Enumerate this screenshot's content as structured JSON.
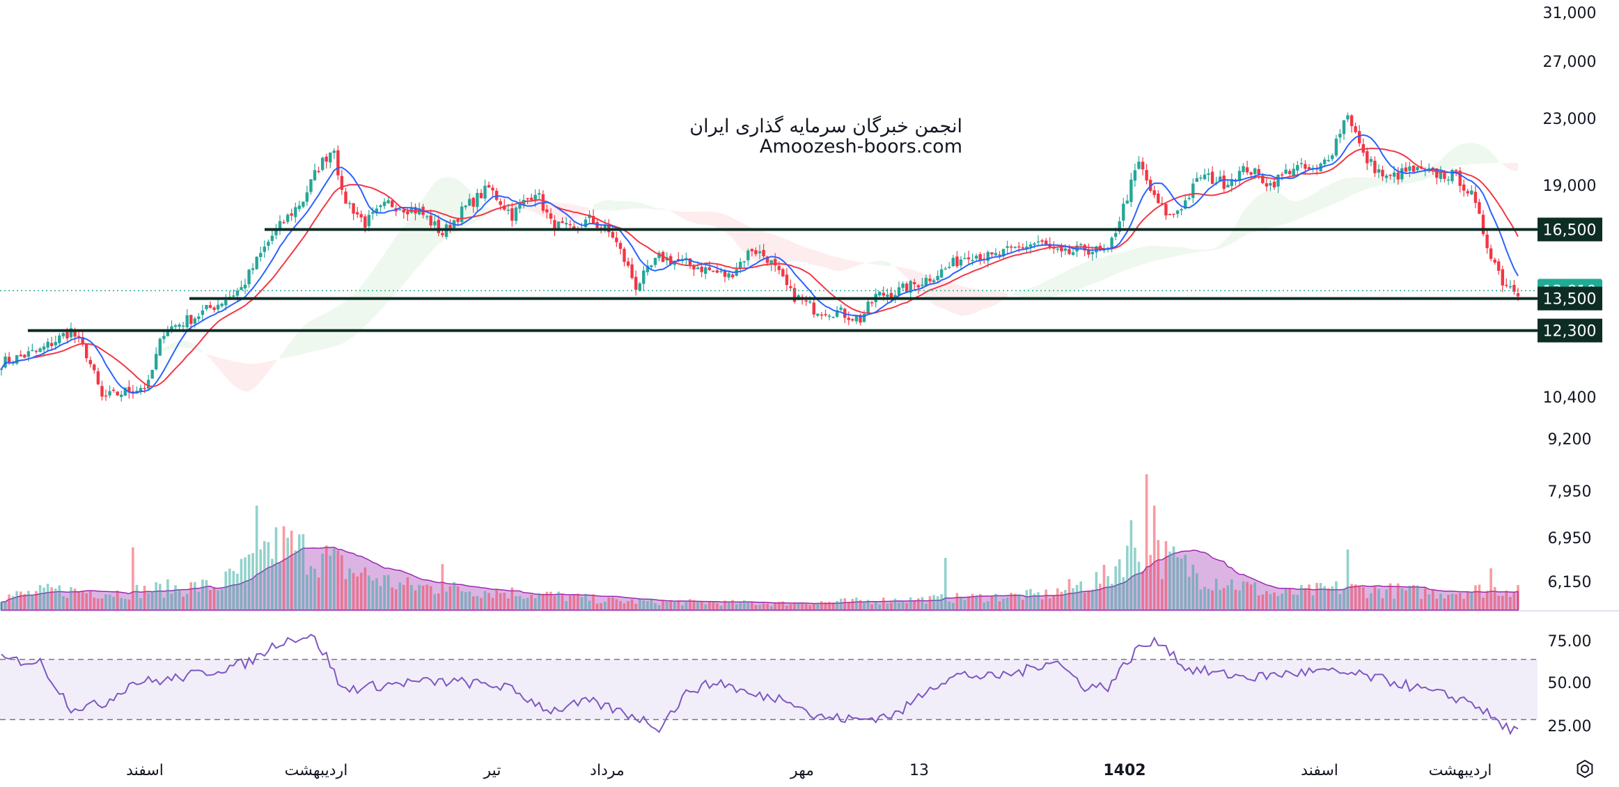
{
  "watermark": {
    "line1": "انجمن خبرگان سرمایه گذاری ایران",
    "line2": "Amoozesh-boors.com"
  },
  "price_axis": {
    "ticks": [
      "31,000",
      "27,000",
      "23,000",
      "19,000",
      "16,500",
      "13,810",
      "13,500",
      "12,300",
      "10,400",
      "9,200",
      "7,950",
      "6,950",
      "6,150"
    ],
    "scale": "log"
  },
  "rsi_axis": {
    "ticks": [
      "75.00",
      "50.00",
      "25.00"
    ]
  },
  "time_axis": {
    "labels": [
      {
        "text": "اسفند",
        "bold": false
      },
      {
        "text": "اردیبهشت",
        "bold": false
      },
      {
        "text": "تیر",
        "bold": false
      },
      {
        "text": "مرداد",
        "bold": false
      },
      {
        "text": "مهر",
        "bold": false
      },
      {
        "text": "13",
        "bold": false
      },
      {
        "text": "1402",
        "bold": true
      },
      {
        "text": "اسفند",
        "bold": false
      },
      {
        "text": "اردیبهشت",
        "bold": false
      }
    ]
  },
  "colors": {
    "up": "#26a69a",
    "down": "#f23645",
    "ma_fast": "#2962ff",
    "ma_slow": "#f23645",
    "volume_ma": "#9c27b0",
    "rsi": "#7e57c2",
    "level_badge": "#0d2c24",
    "last_price_badge": "#22ab94"
  },
  "icons": {
    "settings": "gear-icon"
  },
  "chart_data": {
    "type": "candlestick",
    "price_scale": "log",
    "ylim": [
      8800,
      31000
    ],
    "horizontal_levels": [
      {
        "value": 16500,
        "label": "16,500"
      },
      {
        "value": 13500,
        "label": "13,500"
      },
      {
        "value": 12300,
        "label": "12,300"
      }
    ],
    "last_price": {
      "value": 13810,
      "label": "13,810"
    },
    "close_anchors": [
      [
        0,
        11200
      ],
      [
        10,
        11600
      ],
      [
        18,
        12300
      ],
      [
        22,
        11500
      ],
      [
        26,
        10100
      ],
      [
        32,
        10300
      ],
      [
        38,
        10500
      ],
      [
        42,
        12300
      ],
      [
        50,
        12800
      ],
      [
        56,
        13300
      ],
      [
        62,
        13900
      ],
      [
        70,
        16200
      ],
      [
        78,
        18000
      ],
      [
        82,
        19800
      ],
      [
        86,
        21000
      ],
      [
        88,
        18200
      ],
      [
        94,
        16800
      ],
      [
        100,
        17800
      ],
      [
        108,
        17400
      ],
      [
        114,
        16300
      ],
      [
        120,
        17600
      ],
      [
        126,
        18600
      ],
      [
        132,
        17200
      ],
      [
        138,
        18500
      ],
      [
        142,
        16800
      ],
      [
        148,
        16400
      ],
      [
        152,
        17000
      ],
      [
        158,
        16200
      ],
      [
        164,
        14000
      ],
      [
        170,
        15200
      ],
      [
        176,
        15000
      ],
      [
        182,
        14700
      ],
      [
        188,
        14400
      ],
      [
        194,
        15600
      ],
      [
        198,
        15200
      ],
      [
        204,
        13700
      ],
      [
        210,
        13100
      ],
      [
        216,
        13000
      ],
      [
        222,
        12700
      ],
      [
        226,
        13600
      ],
      [
        232,
        13800
      ],
      [
        238,
        14200
      ],
      [
        244,
        14700
      ],
      [
        250,
        15400
      ],
      [
        256,
        15200
      ],
      [
        262,
        15600
      ],
      [
        268,
        15900
      ],
      [
        274,
        15300
      ],
      [
        280,
        15600
      ],
      [
        286,
        15400
      ],
      [
        290,
        17600
      ],
      [
        294,
        20000
      ],
      [
        298,
        18000
      ],
      [
        302,
        17100
      ],
      [
        306,
        17900
      ],
      [
        310,
        19300
      ],
      [
        316,
        18900
      ],
      [
        322,
        19700
      ],
      [
        328,
        18800
      ],
      [
        334,
        19800
      ],
      [
        340,
        19500
      ],
      [
        344,
        20800
      ],
      [
        348,
        23200
      ],
      [
        352,
        20400
      ],
      [
        358,
        19100
      ],
      [
        364,
        19600
      ],
      [
        370,
        19400
      ],
      [
        376,
        19300
      ],
      [
        380,
        18200
      ],
      [
        384,
        15800
      ],
      [
        388,
        14200
      ],
      [
        392,
        13800
      ]
    ],
    "volume_anchors": [
      [
        0,
        0.12
      ],
      [
        14,
        0.18
      ],
      [
        30,
        0.16
      ],
      [
        44,
        0.2
      ],
      [
        56,
        0.22
      ],
      [
        64,
        0.4
      ],
      [
        72,
        0.6
      ],
      [
        82,
        0.5
      ],
      [
        90,
        0.36
      ],
      [
        104,
        0.22
      ],
      [
        124,
        0.18
      ],
      [
        140,
        0.14
      ],
      [
        160,
        0.08
      ],
      [
        200,
        0.06
      ],
      [
        240,
        0.1
      ],
      [
        270,
        0.14
      ],
      [
        286,
        0.3
      ],
      [
        292,
        0.62
      ],
      [
        300,
        0.48
      ],
      [
        312,
        0.3
      ],
      [
        330,
        0.14
      ],
      [
        346,
        0.2
      ],
      [
        370,
        0.16
      ],
      [
        392,
        0.2
      ]
    ],
    "volume_spikes": [
      [
        66,
        1.0
      ],
      [
        68,
        0.66
      ],
      [
        34,
        0.6
      ],
      [
        114,
        0.44
      ],
      [
        244,
        0.5
      ],
      [
        292,
        0.86
      ],
      [
        296,
        1.3
      ],
      [
        298,
        1.0
      ],
      [
        348,
        0.58
      ],
      [
        385,
        0.4
      ]
    ],
    "rsi": {
      "levels": [
        30,
        70
      ],
      "anchors": [
        [
          0,
          70
        ],
        [
          10,
          68
        ],
        [
          18,
          38
        ],
        [
          26,
          40
        ],
        [
          34,
          55
        ],
        [
          42,
          56
        ],
        [
          54,
          62
        ],
        [
          64,
          68
        ],
        [
          72,
          82
        ],
        [
          80,
          86
        ],
        [
          84,
          72
        ],
        [
          88,
          50
        ],
        [
          96,
          52
        ],
        [
          106,
          55
        ],
        [
          118,
          55
        ],
        [
          130,
          52
        ],
        [
          142,
          36
        ],
        [
          152,
          42
        ],
        [
          164,
          32
        ],
        [
          170,
          25
        ],
        [
          178,
          50
        ],
        [
          186,
          55
        ],
        [
          194,
          46
        ],
        [
          204,
          44
        ],
        [
          210,
          32
        ],
        [
          222,
          30
        ],
        [
          232,
          34
        ],
        [
          240,
          52
        ],
        [
          248,
          60
        ],
        [
          256,
          58
        ],
        [
          264,
          62
        ],
        [
          272,
          70
        ],
        [
          280,
          52
        ],
        [
          286,
          52
        ],
        [
          294,
          78
        ],
        [
          300,
          82
        ],
        [
          306,
          64
        ],
        [
          316,
          60
        ],
        [
          324,
          58
        ],
        [
          330,
          60
        ],
        [
          340,
          62
        ],
        [
          350,
          60
        ],
        [
          360,
          55
        ],
        [
          370,
          48
        ],
        [
          380,
          42
        ],
        [
          388,
          26
        ],
        [
          392,
          22
        ]
      ]
    }
  }
}
